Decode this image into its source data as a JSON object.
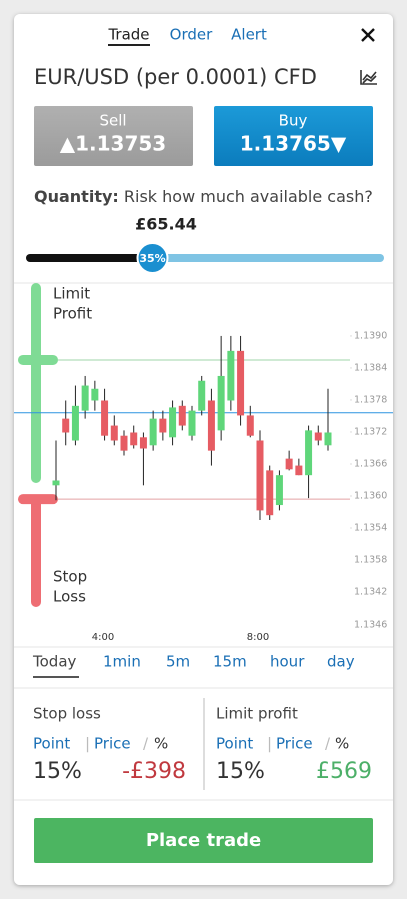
{
  "tabs": [
    "Trade",
    "Order",
    "Alert"
  ],
  "instrument": "EUR/USD (per 0.0001) CFD",
  "sell": {
    "label": "Sell",
    "price": "▲1.13753"
  },
  "buy": {
    "label": "Buy",
    "price": "1.13765▼"
  },
  "quantity": {
    "label": "Quantity:",
    "prompt": "Risk how much available cash?",
    "amount": "£65.44"
  },
  "slider": {
    "value": 35,
    "label": "35%"
  },
  "chart_data": {
    "type": "candlestick",
    "ylim": [
      1.1351,
      1.1391
    ],
    "yticks": [
      {
        "value": 1.139,
        "label": "1.1390"
      },
      {
        "value": 1.1384,
        "label": "1.1384"
      },
      {
        "value": 1.1378,
        "label": "1.1378"
      },
      {
        "value": 1.1372,
        "label": "1.1372"
      },
      {
        "value": 1.1366,
        "label": "1.1366"
      },
      {
        "value": 1.136,
        "label": "1.1360"
      },
      {
        "value": 1.1354,
        "label": "1.1354"
      }
    ],
    "volume_labels": [
      "1.1358",
      "1.1342",
      "1.1346"
    ],
    "time_labels": [
      "4:00",
      "8:00"
    ],
    "limit_label": [
      "Limit",
      "Profit"
    ],
    "stop_label": [
      "Stop",
      "Loss"
    ],
    "limit_level": 1.13855,
    "stop_level": 1.13594,
    "current_level": 1.13756,
    "open": [
      1.1362,
      1.13745,
      1.13704,
      1.1376,
      1.13779,
      1.13779,
      1.13732,
      1.13713,
      1.13719,
      1.1371,
      1.13695,
      1.13745,
      1.1371,
      1.13769,
      1.13713,
      1.1376,
      1.13779,
      1.13723,
      1.13779,
      1.13872,
      1.13751,
      1.13704,
      1.13648,
      1.13583,
      1.1367,
      1.13657,
      1.13639,
      1.13719,
      1.13695
    ],
    "high": [
      1.13704,
      1.13779,
      1.13807,
      1.13825,
      1.13816,
      1.13801,
      1.13751,
      1.13723,
      1.13732,
      1.13719,
      1.1376,
      1.1376,
      1.13779,
      1.13779,
      1.13769,
      1.13825,
      1.13801,
      1.139,
      1.139,
      1.139,
      1.13769,
      1.13723,
      1.13657,
      1.13648,
      1.13685,
      1.1367,
      1.13732,
      1.13732,
      1.13801
    ],
    "low": [
      1.13592,
      1.13695,
      1.13695,
      1.13745,
      1.1376,
      1.13704,
      1.13695,
      1.13676,
      1.13689,
      1.1362,
      1.13685,
      1.13704,
      1.13695,
      1.13723,
      1.13704,
      1.13751,
      1.13657,
      1.13704,
      1.1376,
      1.13732,
      1.1371,
      1.13555,
      1.13555,
      1.13573,
      1.13648,
      1.13639,
      1.13596,
      1.13695,
      1.13685
    ],
    "close": [
      1.13629,
      1.13719,
      1.13769,
      1.13807,
      1.13801,
      1.13713,
      1.13704,
      1.13685,
      1.13695,
      1.13689,
      1.13745,
      1.13719,
      1.13766,
      1.13732,
      1.1376,
      1.13816,
      1.13685,
      1.13825,
      1.13872,
      1.13751,
      1.13713,
      1.13573,
      1.13564,
      1.13639,
      1.1365,
      1.13639,
      1.13723,
      1.13704,
      1.13719
    ]
  },
  "ranges": [
    "Today",
    "1min",
    "5m",
    "15m",
    "hour",
    "day"
  ],
  "stop_loss": {
    "title": "Stop loss",
    "point": "Point",
    "price": "Price",
    "percent": "%",
    "value": "15%",
    "amount": "-£398"
  },
  "limit_profit": {
    "title": "Limit profit",
    "point": "Point",
    "price": "Price",
    "percent": "%",
    "value": "15%",
    "amount": "£569"
  },
  "button": "Place trade"
}
